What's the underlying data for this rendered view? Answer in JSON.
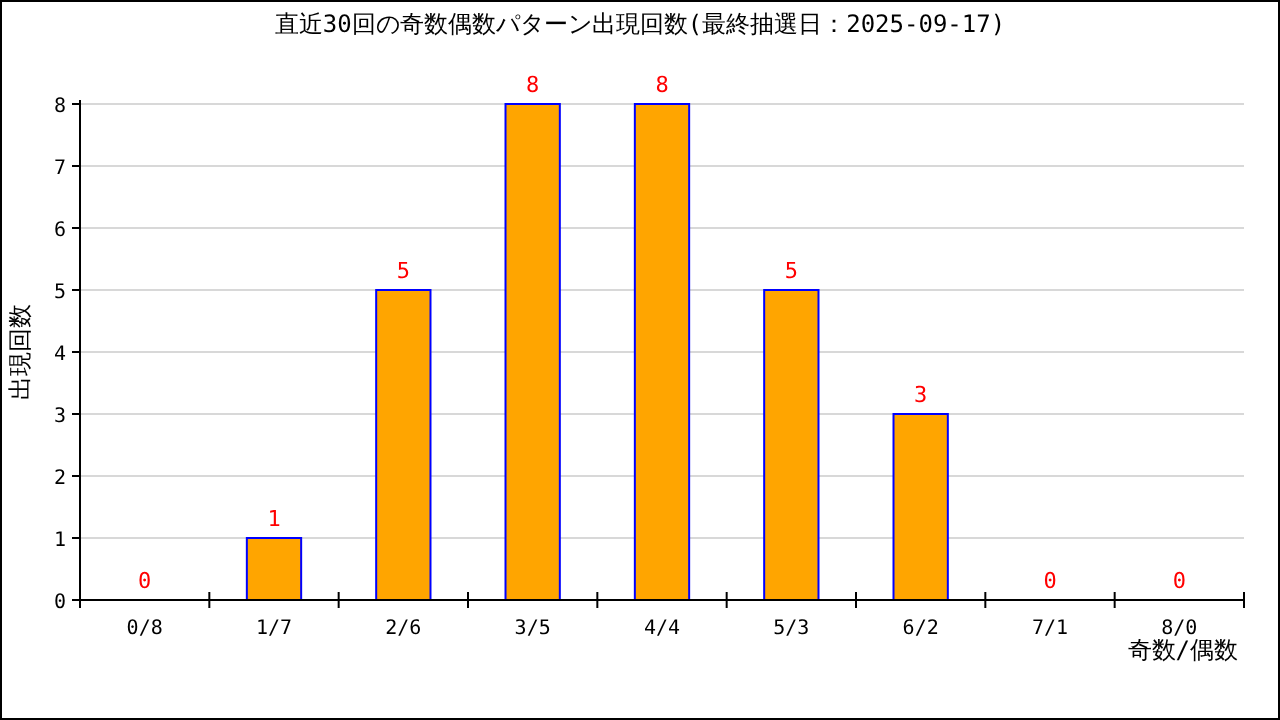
{
  "chart_data": {
    "type": "bar",
    "title": "直近30回の奇数偶数パターン出現回数(最終抽選日：2025-09-17)",
    "xlabel": "奇数/偶数",
    "ylabel": "出現回数",
    "categories": [
      "0/8",
      "1/7",
      "2/6",
      "3/5",
      "4/4",
      "5/3",
      "6/2",
      "7/1",
      "8/0"
    ],
    "values": [
      0,
      1,
      5,
      8,
      8,
      5,
      3,
      0,
      0
    ],
    "color": "#ffa500",
    "ylim": [
      0,
      8
    ],
    "yticks": [
      0,
      1,
      2,
      3,
      4,
      5,
      6,
      7,
      8
    ],
    "grid": "y",
    "data_labels": true
  }
}
